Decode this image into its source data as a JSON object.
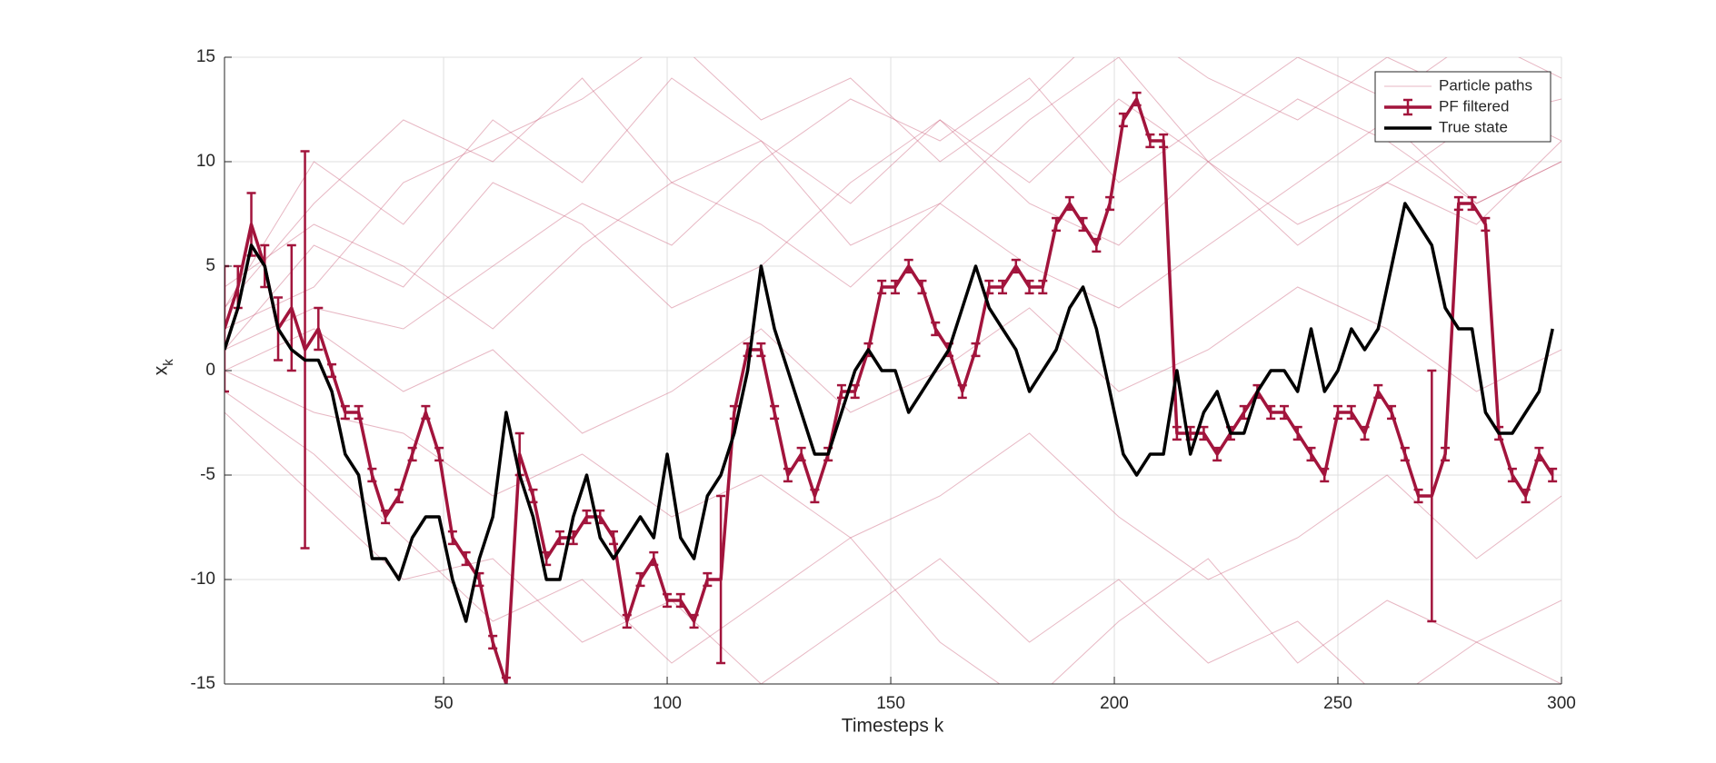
{
  "chart_data": {
    "type": "line",
    "xlabel": "Timesteps k",
    "ylabel": {
      "text": "x",
      "subscript": "k"
    },
    "xlim": [
      1,
      300
    ],
    "ylim": [
      -15,
      15
    ],
    "xticks": [
      50,
      100,
      150,
      200,
      250,
      300
    ],
    "yticks": [
      -15,
      -10,
      -5,
      0,
      5,
      10,
      15
    ],
    "grid": true,
    "legend": "upper right",
    "x": [
      1,
      4,
      7,
      10,
      13,
      16,
      19,
      22,
      25,
      28,
      31,
      34,
      37,
      40,
      43,
      46,
      49,
      52,
      55,
      58,
      61,
      64,
      67,
      70,
      73,
      76,
      79,
      82,
      85,
      88,
      91,
      94,
      97,
      100,
      103,
      106,
      109,
      112,
      115,
      118,
      121,
      124,
      127,
      130,
      133,
      136,
      139,
      142,
      145,
      148,
      151,
      154,
      157,
      160,
      163,
      166,
      169,
      172,
      175,
      178,
      181,
      184,
      187,
      190,
      193,
      196,
      199,
      202,
      205,
      208,
      211,
      214,
      217,
      220,
      223,
      226,
      229,
      232,
      235,
      238,
      241,
      244,
      247,
      250,
      253,
      256,
      259,
      262,
      265,
      268,
      271,
      274,
      277,
      280,
      283,
      286,
      289,
      292,
      295,
      298
    ],
    "series": [
      {
        "name": "Particle paths",
        "color": "#c9607a",
        "x": [
          1,
          21,
          41,
          61,
          81,
          101,
          121,
          141,
          161,
          181,
          201,
          221,
          241,
          261,
          281,
          300
        ],
        "paths": [
          [
            3,
            8,
            12,
            10,
            14,
            9,
            11,
            6,
            8,
            12,
            15,
            10,
            7,
            9,
            12,
            13
          ],
          [
            1,
            6,
            4,
            9,
            7,
            3,
            5,
            9,
            12,
            8,
            6,
            10,
            13,
            11,
            8,
            10
          ],
          [
            -1,
            -4,
            -8,
            -12,
            -10,
            -14,
            -11,
            -8,
            -13,
            -16,
            -12,
            -9,
            -14,
            -11,
            -13,
            -15
          ],
          [
            2,
            4,
            9,
            11,
            13,
            16,
            12,
            14,
            10,
            13,
            17,
            14,
            12,
            15,
            13,
            11
          ],
          [
            0,
            -2,
            -3,
            -6,
            -4,
            -7,
            -5,
            -8,
            -6,
            -3,
            -7,
            -10,
            -8,
            -5,
            -9,
            -6
          ],
          [
            4,
            7,
            5,
            2,
            6,
            9,
            7,
            4,
            8,
            5,
            3,
            6,
            9,
            12,
            8,
            10
          ],
          [
            -2,
            -6,
            -10,
            -9,
            -13,
            -11,
            -15,
            -12,
            -9,
            -13,
            -10,
            -14,
            -12,
            -16,
            -13,
            -11
          ],
          [
            1,
            3,
            2,
            5,
            8,
            6,
            10,
            13,
            11,
            14,
            9,
            12,
            15,
            13,
            16,
            14
          ],
          [
            0,
            2,
            -1,
            1,
            -3,
            -1,
            2,
            -2,
            0,
            3,
            -1,
            1,
            4,
            2,
            -1,
            1
          ],
          [
            3,
            10,
            7,
            12,
            9,
            14,
            11,
            8,
            12,
            9,
            13,
            10,
            6,
            9,
            7,
            11
          ]
        ]
      },
      {
        "name": "PF filtered",
        "color": "#a2143c",
        "values": [
          2,
          4,
          7,
          5,
          2,
          3,
          1,
          2,
          0,
          -2,
          -2,
          -5,
          -7,
          -6,
          -4,
          -2,
          -4,
          -8,
          -9,
          -10,
          -13,
          -15,
          -4,
          -6,
          -9,
          -8,
          -8,
          -7,
          -7,
          -8,
          -12,
          -10,
          -9,
          -11,
          -11,
          -12,
          -10,
          -10,
          -2,
          1,
          1,
          -2,
          -5,
          -4,
          -6,
          -4,
          -1,
          -1,
          1,
          4,
          4,
          5,
          4,
          2,
          1,
          -1,
          1,
          4,
          4,
          5,
          4,
          4,
          7,
          8,
          7,
          6,
          8,
          12,
          13,
          11,
          11,
          -3,
          -3,
          -3,
          -4,
          -3,
          -2,
          -1,
          -2,
          -2,
          -3,
          -4,
          -5,
          -2,
          -2,
          -3,
          -1,
          -2,
          -4,
          -6,
          -6,
          -4,
          8,
          8,
          7,
          -3,
          -5,
          -6,
          -4,
          -5
        ],
        "errors": [
          3,
          1,
          1.5,
          1,
          1.5,
          3,
          9.5,
          1,
          0.3,
          0.3,
          0.3,
          0.3,
          0.3,
          0.3,
          0.3,
          0.3,
          0.3,
          0.3,
          0.3,
          0.3,
          0.3,
          0.3,
          1,
          0.3,
          0.3,
          0.3,
          0.3,
          0.3,
          0.3,
          0.3,
          0.3,
          0.3,
          0.3,
          0.3,
          0.3,
          0.3,
          0.3,
          4,
          0.3,
          0.3,
          0.3,
          0.3,
          0.3,
          0.3,
          0.3,
          0.3,
          0.3,
          0.3,
          0.3,
          0.3,
          0.3,
          0.3,
          0.3,
          0.3,
          0.3,
          0.3,
          0.3,
          0.3,
          0.3,
          0.3,
          0.3,
          0.3,
          0.3,
          0.3,
          0.3,
          0.3,
          0.3,
          0.3,
          0.3,
          0.3,
          0.3,
          0.3,
          0.3,
          0.3,
          0.3,
          0.3,
          0.3,
          0.3,
          0.3,
          0.3,
          0.3,
          0.3,
          0.3,
          0.3,
          0.3,
          0.3,
          0.3,
          0.3,
          0.3,
          0.3,
          6,
          0.3,
          0.3,
          0.3,
          0.3,
          0.3,
          0.3,
          0.3,
          0.3,
          0.3
        ]
      },
      {
        "name": "True state",
        "color": "#000000",
        "values": [
          1,
          3,
          6,
          5,
          2,
          1,
          0.5,
          0.5,
          -1,
          -4,
          -5,
          -9,
          -9,
          -10,
          -8,
          -7,
          -7,
          -10,
          -12,
          -9,
          -7,
          -2,
          -5,
          -7,
          -10,
          -10,
          -7,
          -5,
          -8,
          -9,
          -8,
          -7,
          -8,
          -4,
          -8,
          -9,
          -6,
          -5,
          -3,
          0,
          5,
          2,
          0,
          -2,
          -4,
          -4,
          -2,
          0,
          1,
          0,
          0,
          -2,
          -1,
          0,
          1,
          3,
          5,
          3,
          2,
          1,
          -1,
          0,
          1,
          3,
          4,
          2,
          -1,
          -4,
          -5,
          -4,
          -4,
          0,
          -4,
          -2,
          -1,
          -3,
          -3,
          -1,
          0,
          0,
          -1,
          2,
          -1,
          0,
          2,
          1,
          2,
          5,
          8,
          7,
          6,
          3,
          2,
          2,
          -2,
          -3,
          -3,
          -2,
          -1,
          2
        ]
      }
    ]
  }
}
